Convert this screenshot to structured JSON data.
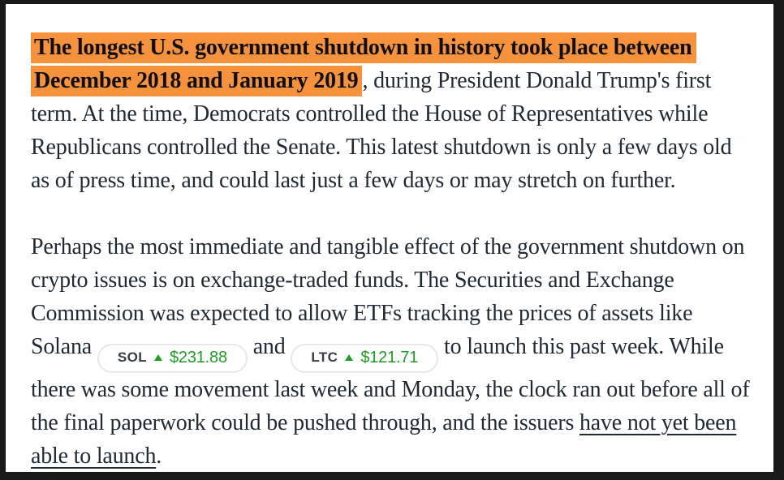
{
  "colors": {
    "frame": "#191919",
    "page_background": "#ffffff",
    "body_text": "#202a34",
    "highlight": "#f7923c",
    "highlight_text": "#0f0f0f",
    "green": "#1e9e22",
    "pill_border": "#e7e7e7",
    "ticker_text": "#393e45"
  },
  "article": {
    "paragraph1": {
      "highlighted_text": "The longest U.S. government shutdown in history took place between December 2018 and January 2019",
      "rest_text": ", during President Donald Trump's first term. At the time, Democrats controlled the House of Representatives while Republicans controlled the Senate. This latest shutdown is only a few days old as of press time, and could last just a few days or may stretch on further."
    },
    "paragraph2": {
      "part1": "Perhaps the most immediate and tangible effect of the government shutdown on crypto issues is on exchange-traded funds. The Securities and Exchange Commission was expected to allow ETFs tracking the prices of assets like Solana",
      "conjunction": "and",
      "part2": "to launch this past week. While there was some movement last week and Monday, the clock ran out before all of the final paperwork could be pushed through, and the issuers",
      "link_text": "have not yet been able to launch",
      "after_link": "."
    },
    "tickers": [
      {
        "symbol": "SOL",
        "price": "$231.88",
        "direction": "up",
        "icon": "up-triangle-icon"
      },
      {
        "symbol": "LTC",
        "price": "$121.71",
        "direction": "up",
        "icon": "up-triangle-icon"
      }
    ]
  }
}
